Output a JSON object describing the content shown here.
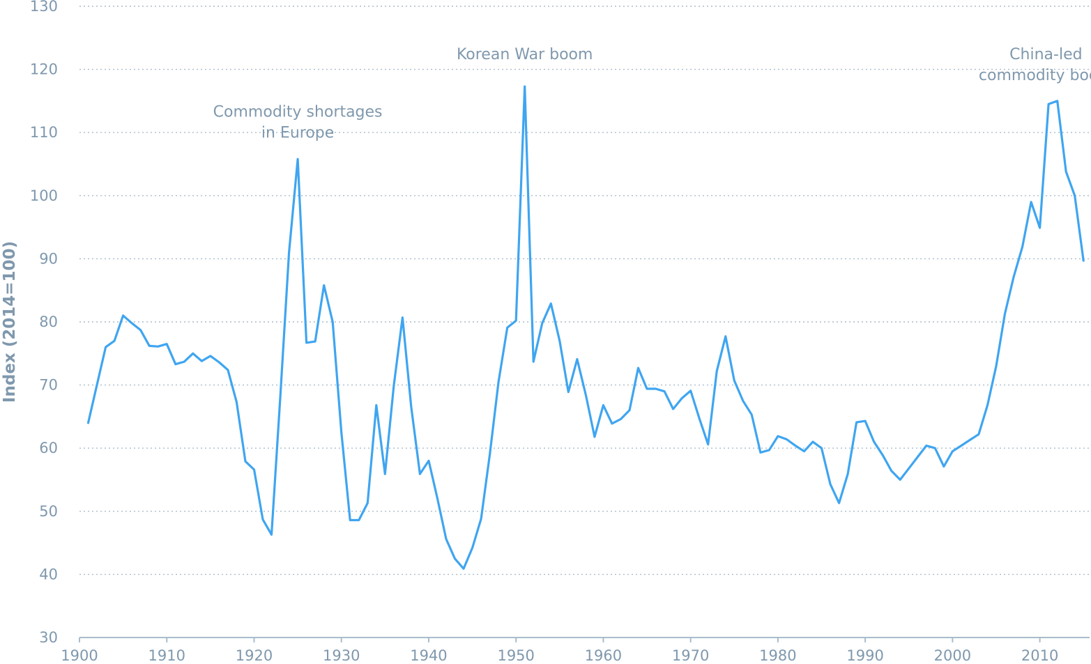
{
  "chart_data": {
    "type": "line",
    "title": "",
    "xlabel": "",
    "ylabel": "Index (2014=100)",
    "xlim": [
      1900,
      2015.7
    ],
    "ylim": [
      30,
      130
    ],
    "grid": true,
    "x_ticks": [
      1900,
      1910,
      1920,
      1930,
      1940,
      1950,
      1960,
      1970,
      1980,
      1990,
      2000,
      2010
    ],
    "y_ticks": [
      30,
      40,
      50,
      60,
      70,
      80,
      90,
      100,
      110,
      120,
      130
    ],
    "color": "#3fa5f0",
    "series": [
      {
        "name": "",
        "x": [
          1901,
          1902,
          1903,
          1904,
          1905,
          1906,
          1907,
          1908,
          1909,
          1910,
          1911,
          1912,
          1913,
          1914,
          1915,
          1916,
          1917,
          1918,
          1919,
          1920,
          1921,
          1922,
          1923,
          1924,
          1925,
          1926,
          1927,
          1928,
          1929,
          1930,
          1931,
          1932,
          1933,
          1934,
          1935,
          1936,
          1937,
          1938,
          1939,
          1940,
          1941,
          1942,
          1943,
          1944,
          1945,
          1946,
          1947,
          1948,
          1949,
          1950,
          1951,
          1952,
          1953,
          1954,
          1955,
          1956,
          1957,
          1958,
          1959,
          1960,
          1961,
          1962,
          1963,
          1964,
          1965,
          1966,
          1967,
          1968,
          1969,
          1970,
          1971,
          1972,
          1973,
          1974,
          1975,
          1976,
          1977,
          1978,
          1979,
          1980,
          1981,
          1982,
          1983,
          1984,
          1985,
          1986,
          1987,
          1988,
          1989,
          1990,
          1991,
          1992,
          1993,
          1994,
          1995,
          1996,
          1997,
          1998,
          1999,
          2000,
          2001,
          2002,
          2003,
          2004,
          2005,
          2006,
          2007,
          2008,
          2009,
          2010,
          2011,
          2012,
          2013,
          2014,
          2015
        ],
        "values": [
          64,
          70,
          76,
          77,
          81,
          79.8,
          78.7,
          76.2,
          76.1,
          76.5,
          73.3,
          73.7,
          75,
          73.8,
          74.6,
          73.6,
          72.4,
          67.3,
          57.9,
          56.6,
          48.7,
          46.3,
          68,
          91,
          105.8,
          76.7,
          76.9,
          85.8,
          80,
          62.5,
          48.6,
          48.6,
          51.3,
          66.8,
          55.9,
          69.9,
          80.7,
          66.5,
          55.9,
          58,
          52,
          45.6,
          42.5,
          40.9,
          44.2,
          48.8,
          59,
          70.5,
          79.1,
          80.2,
          117.3,
          73.7,
          79.8,
          82.9,
          77,
          68.9,
          74.1,
          68.4,
          61.8,
          66.8,
          63.9,
          64.6,
          66,
          72.7,
          69.4,
          69.4,
          69,
          66.2,
          67.9,
          69.1,
          64.7,
          60.6,
          72.2,
          77.7,
          70.7,
          67.5,
          65.3,
          59.3,
          59.7,
          61.9,
          61.4,
          60.4,
          59.5,
          61,
          60,
          54.3,
          51.3,
          55.9,
          64.1,
          64.3,
          61,
          58.9,
          56.4,
          55,
          56.8,
          58.6,
          60.4,
          60,
          57.1,
          59.5,
          60.4,
          61.3,
          62.2,
          66.8,
          73,
          81.3,
          87.1,
          91.9,
          99,
          94.9,
          114.5,
          115,
          103.8,
          100,
          89.7
        ]
      }
    ],
    "annotations": [
      {
        "lines": [
          "Commodity shortages",
          "in Europe"
        ],
        "x": 1925,
        "y": 112.5
      },
      {
        "lines": [
          "Korean War boom"
        ],
        "x": 1951,
        "y": 121.6
      },
      {
        "lines": [
          "China-led",
          "commodity boom"
        ],
        "x": 2010.7,
        "y": 121.6
      }
    ]
  }
}
